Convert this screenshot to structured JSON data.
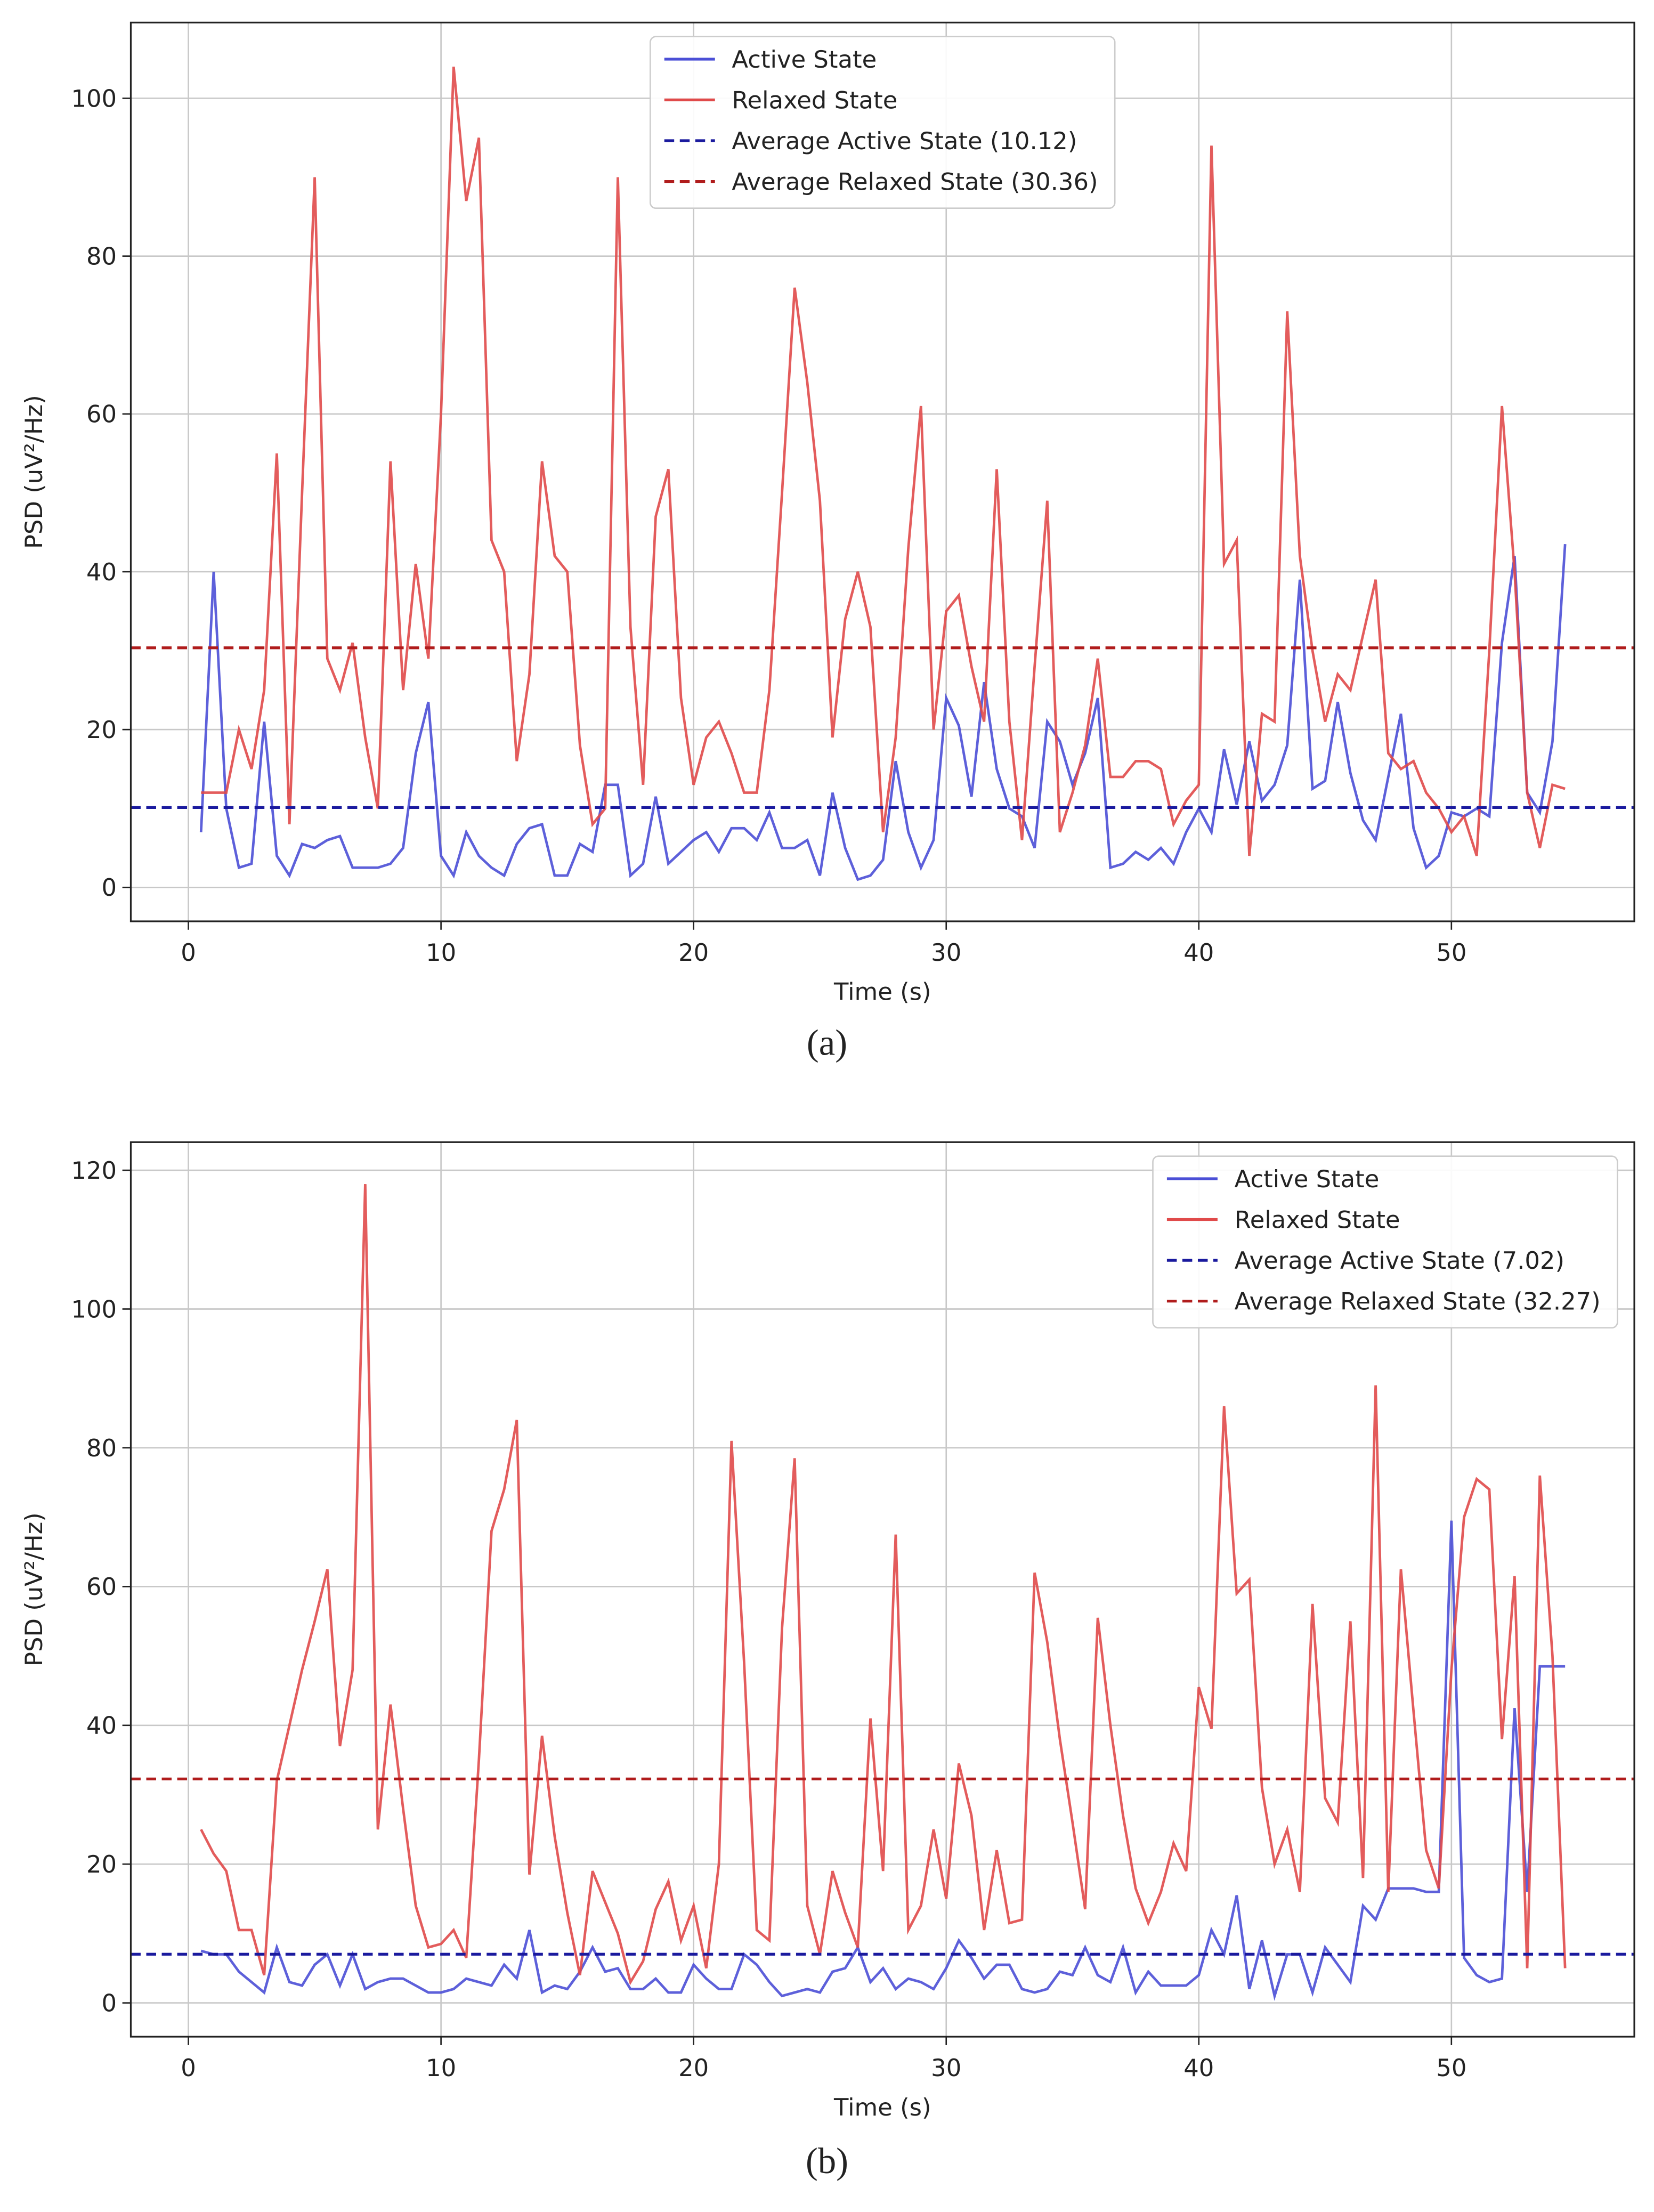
{
  "chart_data": [
    {
      "type": "line",
      "caption": "(a)",
      "xlabel": "Time (s)",
      "ylabel": "PSD (uV²/Hz)",
      "xlim": [
        -2.28,
        57.24
      ],
      "ylim": [
        -4.3,
        109.6
      ],
      "xticks": [
        0,
        10,
        20,
        30,
        40,
        50
      ],
      "yticks": [
        0,
        20,
        40,
        60,
        80,
        100
      ],
      "grid": true,
      "legend": "upper center",
      "x": [
        0.5,
        1,
        1.5,
        2,
        2.5,
        3,
        3.5,
        4,
        4.5,
        5,
        5.5,
        6,
        6.5,
        7,
        7.5,
        8,
        8.5,
        9,
        9.5,
        10,
        10.5,
        11,
        11.5,
        12,
        12.5,
        13,
        13.5,
        14,
        14.5,
        15,
        15.5,
        16,
        16.5,
        17,
        17.5,
        18,
        18.5,
        19,
        19.5,
        20,
        20.5,
        21,
        21.5,
        22,
        22.5,
        23,
        23.5,
        24,
        24.5,
        25,
        25.5,
        26,
        26.5,
        27,
        27.5,
        28,
        28.5,
        29,
        29.5,
        30,
        30.5,
        31,
        31.5,
        32,
        32.5,
        33,
        33.5,
        34,
        34.5,
        35,
        35.5,
        36,
        36.5,
        37,
        37.5,
        38,
        38.5,
        39,
        39.5,
        40,
        40.5,
        41,
        41.5,
        42,
        42.5,
        43,
        43.5,
        44,
        44.5,
        45,
        45.5,
        46,
        46.5,
        47,
        47.5,
        48,
        48.5,
        49,
        49.5,
        50,
        50.5,
        51,
        51.5,
        52,
        52.5,
        53,
        53.5,
        54,
        54.5
      ],
      "series": [
        {
          "name": "Active State",
          "color": "#4b4fd6",
          "values": [
            7,
            40,
            10,
            2.5,
            3,
            21,
            4,
            1.5,
            5.5,
            5,
            6,
            6.5,
            2.5,
            2.5,
            2.5,
            3,
            5,
            17,
            23.5,
            4,
            1.5,
            7,
            4,
            2.5,
            1.5,
            5.5,
            7.5,
            8,
            1.5,
            1.5,
            5.5,
            4.5,
            13,
            13,
            1.5,
            3,
            11.5,
            3,
            4.5,
            6,
            7,
            4.5,
            7.5,
            7.5,
            6,
            9.5,
            5,
            5,
            6,
            1.5,
            12,
            5,
            1,
            1.5,
            3.5,
            16,
            7,
            2.5,
            6,
            24,
            20.5,
            11.5,
            26,
            15,
            10,
            9,
            5,
            21,
            18.5,
            13,
            17,
            24,
            2.5,
            3,
            4.5,
            3.5,
            5,
            3,
            7,
            10,
            7,
            17.5,
            10.5,
            18.5,
            11,
            13,
            18,
            39,
            12.5,
            13.5,
            23.5,
            14.5,
            8.5,
            6,
            14,
            22,
            7.5,
            2.5,
            4,
            9.5,
            9,
            10,
            9,
            31,
            42,
            12,
            9.5,
            18.5,
            43.5
          ]
        },
        {
          "name": "Relaxed State",
          "color": "#e04a4a",
          "values": [
            12,
            12,
            12,
            20,
            15,
            25,
            55,
            8,
            50,
            90,
            29,
            25,
            31,
            19,
            10,
            54,
            25,
            41,
            29,
            60,
            104,
            87,
            95,
            44,
            40,
            16,
            27,
            54,
            42,
            40,
            18,
            8,
            10,
            90,
            33,
            13,
            47,
            53,
            24,
            13,
            19,
            21,
            17,
            12,
            12,
            25,
            50,
            76,
            64,
            49,
            19,
            34,
            40,
            33,
            7,
            19,
            43,
            61,
            20,
            35,
            37,
            28,
            21,
            53,
            21,
            6,
            28,
            49,
            7,
            12,
            18,
            29,
            14,
            14,
            16,
            16,
            15,
            8,
            11,
            13,
            94,
            41,
            44,
            4,
            22,
            21,
            73,
            42,
            30,
            21,
            27,
            25,
            32,
            39,
            17,
            15,
            16,
            12,
            10,
            7,
            9,
            4,
            30,
            61,
            40,
            12,
            5,
            13,
            12.5
          ]
        }
      ],
      "hlines": [
        {
          "name": "Average Active State (10.12)",
          "color": "#1a1a9e",
          "value": 10.12
        },
        {
          "name": "Average Relaxed State (30.36)",
          "color": "#b01c1c",
          "value": 30.36
        }
      ]
    },
    {
      "type": "line",
      "caption": "(b)",
      "xlabel": "Time (s)",
      "ylabel": "PSD (uV²/Hz)",
      "xlim": [
        -2.28,
        57.24
      ],
      "ylim": [
        -4.87,
        124.05
      ],
      "xticks": [
        0,
        10,
        20,
        30,
        40,
        50
      ],
      "yticks": [
        0,
        20,
        40,
        60,
        80,
        100,
        120
      ],
      "grid": true,
      "legend": "upper right",
      "x": [
        0.5,
        1,
        1.5,
        2,
        2.5,
        3,
        3.5,
        4,
        4.5,
        5,
        5.5,
        6,
        6.5,
        7,
        7.5,
        8,
        8.5,
        9,
        9.5,
        10,
        10.5,
        11,
        11.5,
        12,
        12.5,
        13,
        13.5,
        14,
        14.5,
        15,
        15.5,
        16,
        16.5,
        17,
        17.5,
        18,
        18.5,
        19,
        19.5,
        20,
        20.5,
        21,
        21.5,
        22,
        22.5,
        23,
        23.5,
        24,
        24.5,
        25,
        25.5,
        26,
        26.5,
        27,
        27.5,
        28,
        28.5,
        29,
        29.5,
        30,
        30.5,
        31,
        31.5,
        32,
        32.5,
        33,
        33.5,
        34,
        34.5,
        35,
        35.5,
        36,
        36.5,
        37,
        37.5,
        38,
        38.5,
        39,
        39.5,
        40,
        40.5,
        41,
        41.5,
        42,
        42.5,
        43,
        43.5,
        44,
        44.5,
        45,
        45.5,
        46,
        46.5,
        47,
        47.5,
        48,
        48.5,
        49,
        49.5,
        50,
        50.5,
        51,
        51.5,
        52,
        52.5,
        53,
        53.5,
        54,
        54.5
      ],
      "series": [
        {
          "name": "Active State",
          "color": "#4b4fd6",
          "values": [
            7.5,
            7,
            7,
            4.5,
            3,
            1.5,
            8,
            3,
            2.5,
            5.5,
            7,
            2.5,
            7,
            2,
            3,
            3.5,
            3.5,
            2.5,
            1.5,
            1.5,
            2,
            3.5,
            3,
            2.5,
            5.5,
            3.5,
            10.5,
            1.5,
            2.5,
            2,
            4.5,
            8,
            4.5,
            5,
            2,
            2,
            3.5,
            1.5,
            1.5,
            5.5,
            3.5,
            2,
            2,
            7,
            5.5,
            3,
            1,
            1.5,
            2,
            1.5,
            4.5,
            5,
            8,
            3,
            5,
            2,
            3.5,
            3,
            2,
            5,
            9,
            6.5,
            3.5,
            5.5,
            5.5,
            2,
            1.5,
            2,
            4.5,
            4,
            8,
            4,
            3,
            8,
            1.5,
            4.5,
            2.5,
            2.5,
            2.5,
            4,
            10.5,
            7,
            15.5,
            2,
            9,
            1,
            7,
            7,
            1.5,
            8,
            5.5,
            3,
            14,
            12,
            16.5,
            16.5,
            16.5,
            16,
            16,
            69.5,
            6.5,
            4,
            3,
            3.5,
            42.5,
            16,
            48.5,
            48.5,
            48.5
          ]
        },
        {
          "name": "Relaxed State",
          "color": "#e04a4a",
          "values": [
            25,
            21.5,
            19,
            10.5,
            10.5,
            4,
            32,
            40,
            48,
            55,
            62.5,
            37,
            48,
            118,
            25,
            43,
            28,
            14,
            8,
            8.5,
            10.5,
            6.5,
            35,
            68,
            74,
            84,
            18.5,
            38.5,
            24,
            13,
            4,
            19,
            14.5,
            10,
            3,
            6,
            13.5,
            17.5,
            9,
            14,
            5,
            20,
            81,
            49,
            10.5,
            9,
            54,
            78.5,
            14,
            7,
            19,
            13,
            8,
            41,
            19,
            67.5,
            10.5,
            14,
            25,
            15,
            34.5,
            27,
            10.5,
            22,
            11.5,
            12,
            62,
            52,
            38,
            26,
            13.5,
            55.5,
            40,
            27,
            16.5,
            11.5,
            16,
            23,
            19,
            45.5,
            39.5,
            86,
            59,
            61,
            31,
            20,
            25,
            16,
            57.5,
            29.5,
            26,
            55,
            18,
            89,
            16,
            62.5,
            42,
            22,
            16.5,
            48,
            70,
            75.5,
            74,
            38,
            61.5,
            5,
            76,
            50,
            5
          ]
        }
      ],
      "hlines": [
        {
          "name": "Average Active State (7.02)",
          "color": "#1a1a9e",
          "value": 7.02
        },
        {
          "name": "Average Relaxed State (32.27)",
          "color": "#b01c1c",
          "value": 32.27
        }
      ]
    }
  ]
}
